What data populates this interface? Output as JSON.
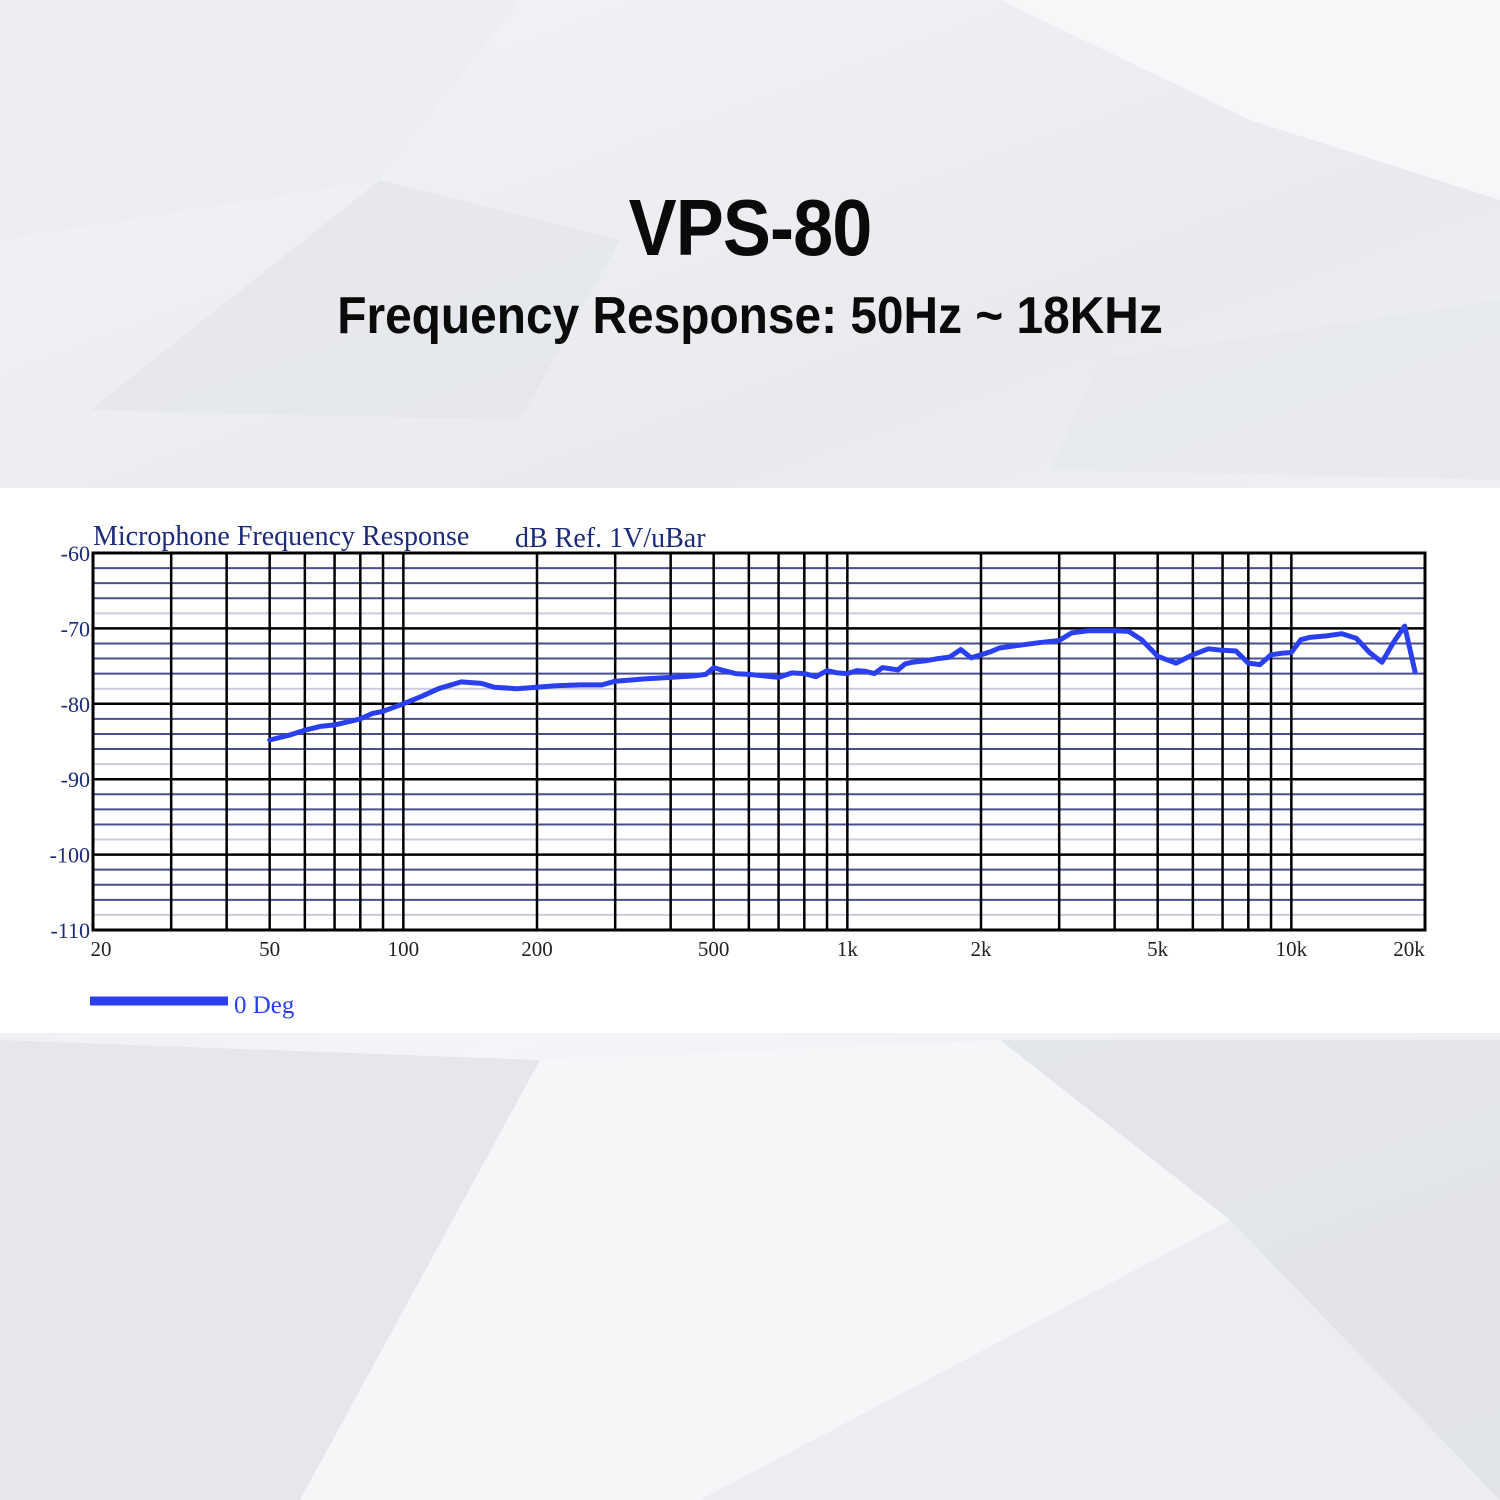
{
  "header": {
    "title": "VPS-80",
    "subtitle": "Frequency Response: 50Hz ~ 18KHz"
  },
  "chart_data": {
    "type": "line",
    "title": "Microphone Frequency Response",
    "ylabel": "dB Ref. 1V/uBar",
    "xlabel": "",
    "xscale": "log",
    "xlim": [
      20,
      20000
    ],
    "ylim": [
      -110,
      -60
    ],
    "x_ticks": [
      20,
      50,
      100,
      200,
      500,
      1000,
      2000,
      5000,
      10000,
      20000
    ],
    "x_tick_labels": [
      "20",
      "50",
      "100",
      "200",
      "500",
      "1k",
      "2k",
      "5k",
      "10k",
      "20k"
    ],
    "y_ticks": [
      -60,
      -70,
      -80,
      -90,
      -100,
      -110
    ],
    "y_tick_labels": [
      "-60",
      "-70",
      "-80",
      "-90",
      "-100",
      "-110"
    ],
    "grid": true,
    "legend_position": "bottom-left",
    "series": [
      {
        "name": "0 Deg",
        "color": "#2a3ff0",
        "x": [
          50,
          55,
          60,
          65,
          70,
          80,
          85,
          90,
          100,
          110,
          120,
          135,
          150,
          160,
          180,
          200,
          220,
          250,
          280,
          300,
          350,
          400,
          450,
          480,
          500,
          520,
          560,
          600,
          650,
          700,
          750,
          800,
          850,
          900,
          950,
          1000,
          1050,
          1100,
          1150,
          1200,
          1300,
          1350,
          1400,
          1500,
          1600,
          1700,
          1800,
          1900,
          2000,
          2100,
          2200,
          2400,
          2700,
          3000,
          3200,
          3500,
          4000,
          4300,
          4600,
          5000,
          5500,
          6000,
          6500,
          7000,
          7500,
          8000,
          8500,
          9000,
          9500,
          10000,
          10500,
          11000,
          12000,
          13000,
          14000,
          15000,
          16000,
          17000,
          18000,
          19000
        ],
        "values": [
          -84.8,
          -84.2,
          -83.5,
          -83.0,
          -82.8,
          -82.0,
          -81.3,
          -81.0,
          -80.0,
          -79.0,
          -78.0,
          -77.1,
          -77.3,
          -77.8,
          -78.0,
          -77.8,
          -77.6,
          -77.5,
          -77.5,
          -77.0,
          -76.7,
          -76.5,
          -76.3,
          -76.1,
          -75.2,
          -75.5,
          -76.0,
          -76.1,
          -76.3,
          -76.5,
          -75.9,
          -76.0,
          -76.4,
          -75.6,
          -75.9,
          -76.0,
          -75.6,
          -75.7,
          -76.0,
          -75.2,
          -75.5,
          -74.7,
          -74.5,
          -74.3,
          -74.0,
          -73.8,
          -72.8,
          -73.9,
          -73.5,
          -73.1,
          -72.6,
          -72.3,
          -71.9,
          -71.6,
          -70.6,
          -70.3,
          -70.3,
          -70.4,
          -71.5,
          -73.7,
          -74.6,
          -73.5,
          -72.7,
          -72.9,
          -73.0,
          -74.6,
          -74.8,
          -73.5,
          -73.3,
          -73.2,
          -71.5,
          -71.2,
          -71.0,
          -70.7,
          -71.3,
          -73.2,
          -74.5,
          -71.8,
          -69.7,
          -75.8
        ]
      }
    ]
  },
  "legend": {
    "label": "0 Deg",
    "color": "#2a3ff0"
  }
}
